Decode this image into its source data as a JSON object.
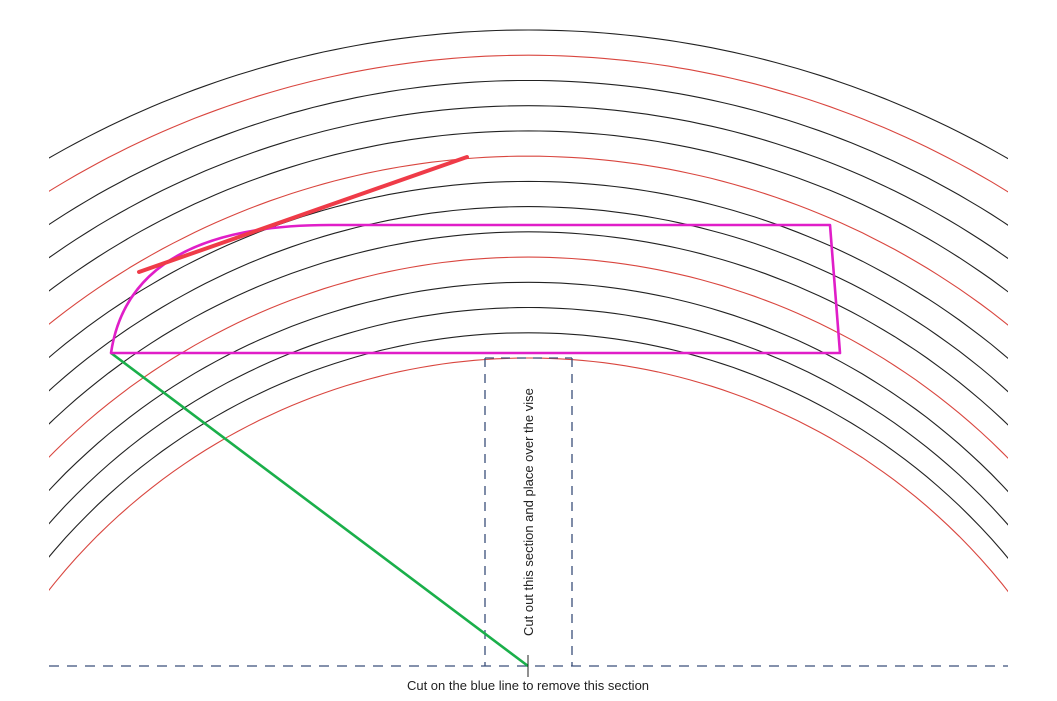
{
  "diagram": {
    "vertical_label": "Cut out this section and place over the vise",
    "bottom_label": "Cut on the blue line to remove this section"
  },
  "colors": {
    "background": "#ffffff",
    "arc_black": "#222222",
    "arc_red": "#d9463f",
    "template_outline": "#e01ec8",
    "tangent_line": "#ef3b48",
    "radius_line": "#1aaf4a",
    "cut_line_blue": "#3a4f7a"
  },
  "arcs": {
    "count": 14,
    "red_every": 4
  }
}
